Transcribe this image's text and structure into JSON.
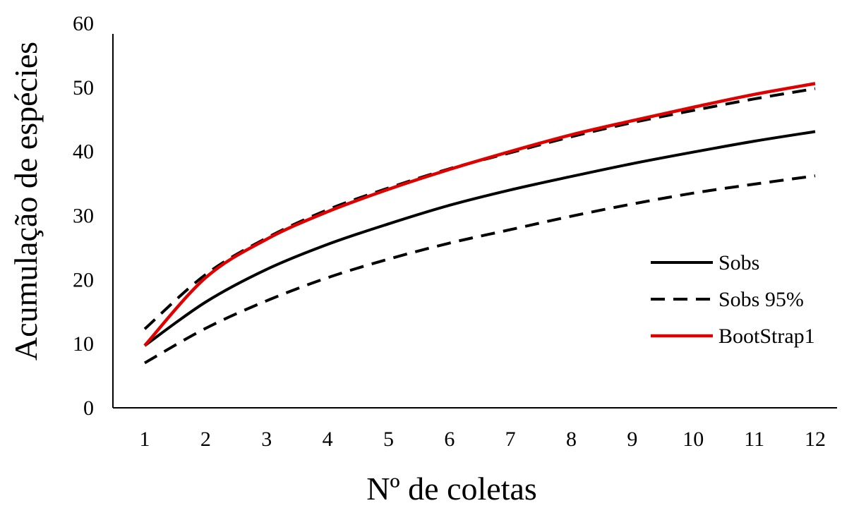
{
  "chart_data": {
    "type": "line",
    "title": "",
    "xlabel": "Nº de coletas",
    "ylabel": "Acumulação de espécies",
    "x": [
      1,
      2,
      3,
      4,
      5,
      6,
      7,
      8,
      9,
      10,
      11,
      12
    ],
    "x_tick_labels": [
      "1",
      "2",
      "3",
      "4",
      "5",
      "6",
      "7",
      "8",
      "9",
      "10",
      "11",
      "12"
    ],
    "y_tick_labels": [
      "0",
      "10",
      "20",
      "30",
      "40",
      "50",
      "60"
    ],
    "ylim": [
      0,
      60
    ],
    "grid": false,
    "legend_position": "right",
    "series": [
      {
        "name": "Sobs",
        "color": "#000000",
        "style": "solid",
        "values": [
          9.7,
          16.5,
          21.6,
          25.5,
          28.7,
          31.6,
          34.0,
          36.1,
          38.1,
          39.9,
          41.6,
          43.1
        ]
      },
      {
        "name": "Sobs 95%",
        "color": "#000000",
        "style": "dashed",
        "values": [
          12.3,
          20.8,
          26.5,
          30.9,
          34.3,
          37.3,
          39.8,
          42.3,
          44.5,
          46.4,
          48.2,
          49.8
        ]
      },
      {
        "name": "",
        "color": "#000000",
        "style": "dashed",
        "values": [
          7.0,
          12.4,
          16.7,
          20.3,
          23.2,
          25.7,
          27.8,
          29.9,
          31.8,
          33.5,
          34.9,
          36.2
        ]
      },
      {
        "name": "BootStrap1",
        "color": "#e00000",
        "style": "solid",
        "values": [
          9.7,
          20.3,
          26.3,
          30.6,
          34.1,
          37.2,
          40.0,
          42.6,
          44.8,
          46.9,
          48.9,
          50.6
        ]
      }
    ]
  }
}
